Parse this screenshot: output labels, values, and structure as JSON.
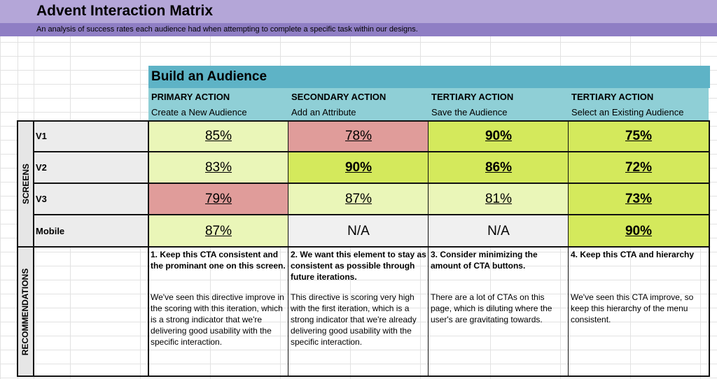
{
  "title": "Advent Interaction Matrix",
  "subtitle": "An analysis of success rates each audience had when attempting to complete a specific task within our designs.",
  "section_title": "Build an Audience",
  "actions": [
    {
      "type": "PRIMARY ACTION",
      "task": "Create a New Audience"
    },
    {
      "type": "SECONDARY ACTION",
      "task": "Add an Attribute"
    },
    {
      "type": "TERTIARY ACTION",
      "task": "Save the Audience"
    },
    {
      "type": "TERTIARY ACTION",
      "task": "Select an Existing Audience"
    }
  ],
  "screens_label": "SCREENS",
  "recommendations_label": "RECOMMENDATIONS",
  "rows": [
    {
      "label": "V1",
      "values": [
        "85%",
        "78%",
        "90%",
        "75%"
      ],
      "colors": [
        "light",
        "red",
        "lime",
        "lime"
      ],
      "bold": [
        false,
        false,
        true,
        true
      ]
    },
    {
      "label": "V2",
      "values": [
        "83%",
        "90%",
        "86%",
        "72%"
      ],
      "colors": [
        "light",
        "lime",
        "lime",
        "lime"
      ],
      "bold": [
        false,
        true,
        true,
        true
      ]
    },
    {
      "label": "V3",
      "values": [
        "79%",
        "87%",
        "81%",
        "73%"
      ],
      "colors": [
        "red",
        "light",
        "light",
        "lime"
      ],
      "bold": [
        false,
        false,
        false,
        true
      ]
    },
    {
      "label": "Mobile",
      "values": [
        "87%",
        "N/A",
        "N/A",
        "90%"
      ],
      "colors": [
        "light",
        "na",
        "na",
        "lime"
      ],
      "bold": [
        false,
        false,
        false,
        true
      ]
    }
  ],
  "recommendations": [
    {
      "heading": "1. Keep this CTA consistent and the prominant one on this screen.",
      "body": "We've seen this directive improve in the scoring with this iteration, which is a strong indicator that we're delivering good usability with the specific interaction."
    },
    {
      "heading": "2. We want this element to stay as consistent as possible through future iterations.",
      "body": "This directive is scoring very high with the first iteration, which is a strong indicator that we're already delivering good usability with the specific interaction."
    },
    {
      "heading": "3. Consider minimizing the amount of CTA buttons.",
      "body": "There are a lot of CTAs on this page, which is diluting where the user's are gravitating towards."
    },
    {
      "heading": "4. Keep this CTA and hierarchy",
      "body": "We've seen this CTA improve, so keep this hierarchy of the menu consistent."
    }
  ]
}
